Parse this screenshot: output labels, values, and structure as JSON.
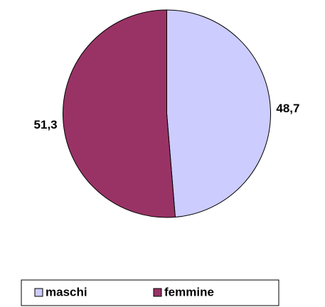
{
  "chart_data": {
    "type": "pie",
    "categories": [
      "maschi",
      "femmine"
    ],
    "values": [
      48.7,
      51.3
    ],
    "value_labels": [
      "48,7",
      "51,3"
    ],
    "colors": [
      "#ccccff",
      "#993366"
    ],
    "legend": "bottom"
  }
}
